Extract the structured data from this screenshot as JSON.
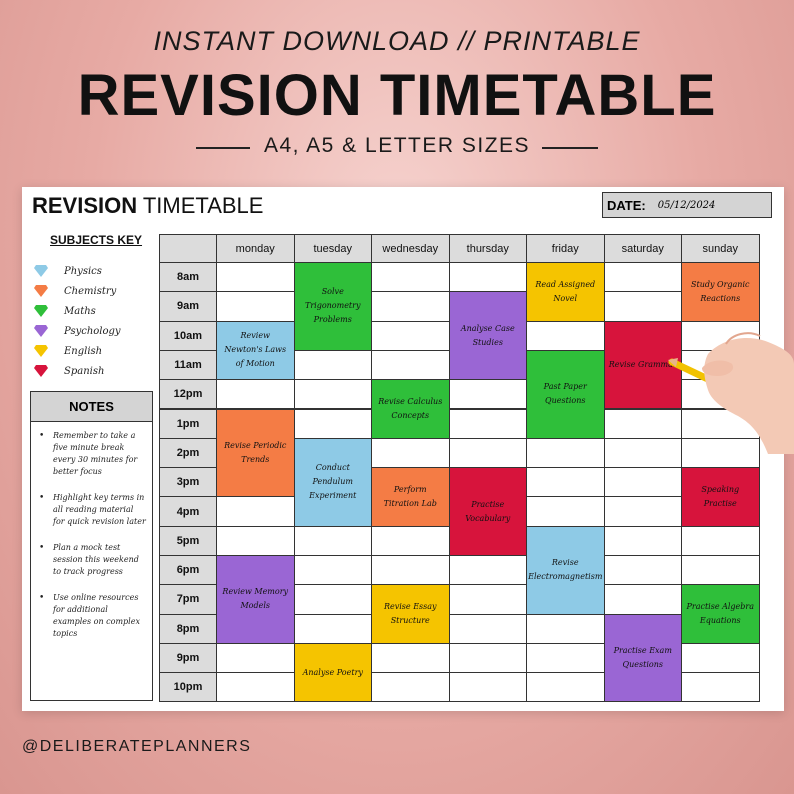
{
  "header": {
    "subtitle": "INSTANT DOWNLOAD // PRINTABLE",
    "title": "REVISION TIMETABLE",
    "sizes": "A4, A5 & LETTER SIZES"
  },
  "footer": {
    "handle": "@DELIBERATEPLANNERS"
  },
  "sheet": {
    "title_bold": "REVISION",
    "title_rest": " TIMETABLE",
    "date_label": "DATE:",
    "date_value": "05/12/2024"
  },
  "subjects_key": {
    "title": "SUBJECTS KEY",
    "items": [
      {
        "label": "Physics",
        "color": "#8ecae6"
      },
      {
        "label": "Chemistry",
        "color": "#f47c45"
      },
      {
        "label": "Maths",
        "color": "#2fbf3a"
      },
      {
        "label": "Psychology",
        "color": "#9a66d4"
      },
      {
        "label": "English",
        "color": "#f5c400"
      },
      {
        "label": "Spanish",
        "color": "#d7143c"
      }
    ]
  },
  "notes": {
    "title": "NOTES",
    "items": [
      "Remember to take a five minute break every 30 minutes for better focus",
      "Highlight key terms in all reading material for quick revision later",
      "Plan a mock test session this weekend to track progress",
      "Use online resources for additional examples on complex topics"
    ]
  },
  "timetable": {
    "days": [
      "monday",
      "tuesday",
      "wednesday",
      "thursday",
      "friday",
      "saturday",
      "sunday"
    ],
    "times": [
      "8am",
      "9am",
      "10am",
      "11am",
      "12pm",
      "1pm",
      "2pm",
      "3pm",
      "4pm",
      "5pm",
      "6pm",
      "7pm",
      "8pm",
      "9pm",
      "10pm"
    ],
    "colors": {
      "physics": "#8ecae6",
      "chemistry": "#f47c45",
      "maths": "#2fbf3a",
      "psychology": "#9a66d4",
      "english": "#f5c400",
      "spanish": "#d7143c"
    },
    "events": [
      {
        "day": 0,
        "start": 2,
        "span": 2,
        "subject": "physics",
        "label": "Review Newton's Laws of Motion"
      },
      {
        "day": 0,
        "start": 5,
        "span": 3,
        "subject": "chemistry",
        "label": "Revise Periodic Trends"
      },
      {
        "day": 0,
        "start": 10,
        "span": 3,
        "subject": "psychology",
        "label": "Review Memory Models"
      },
      {
        "day": 1,
        "start": 0,
        "span": 3,
        "subject": "maths",
        "label": "Solve Trigonometry Problems"
      },
      {
        "day": 1,
        "start": 6,
        "span": 3,
        "subject": "physics",
        "label": "Conduct Pendulum Experiment"
      },
      {
        "day": 1,
        "start": 13,
        "span": 2,
        "subject": "english",
        "label": "Analyse Poetry"
      },
      {
        "day": 2,
        "start": 4,
        "span": 2,
        "subject": "maths",
        "label": "Revise Calculus Concepts"
      },
      {
        "day": 2,
        "start": 7,
        "span": 2,
        "subject": "chemistry",
        "label": "Perform Titration Lab"
      },
      {
        "day": 2,
        "start": 11,
        "span": 2,
        "subject": "english",
        "label": "Revise Essay Structure"
      },
      {
        "day": 3,
        "start": 1,
        "span": 3,
        "subject": "psychology",
        "label": "Analyse Case Studies"
      },
      {
        "day": 3,
        "start": 7,
        "span": 3,
        "subject": "spanish",
        "label": "Practise Vocabulary"
      },
      {
        "day": 4,
        "start": 0,
        "span": 2,
        "subject": "english",
        "label": "Read Assigned Novel"
      },
      {
        "day": 4,
        "start": 3,
        "span": 3,
        "subject": "maths",
        "label": "Past Paper Questions"
      },
      {
        "day": 4,
        "start": 9,
        "span": 3,
        "subject": "physics",
        "label": "Revise Electromagnetism"
      },
      {
        "day": 5,
        "start": 2,
        "span": 3,
        "subject": "spanish",
        "label": "Revise Grammar"
      },
      {
        "day": 5,
        "start": 12,
        "span": 3,
        "subject": "psychology",
        "label": "Practise Exam Questions"
      },
      {
        "day": 6,
        "start": 0,
        "span": 2,
        "subject": "chemistry",
        "label": "Study Organic Reactions"
      },
      {
        "day": 6,
        "start": 7,
        "span": 2,
        "subject": "spanish",
        "label": "Speaking Practise"
      },
      {
        "day": 6,
        "start": 11,
        "span": 2,
        "subject": "maths",
        "label": "Practise Algebra Equations"
      }
    ]
  }
}
